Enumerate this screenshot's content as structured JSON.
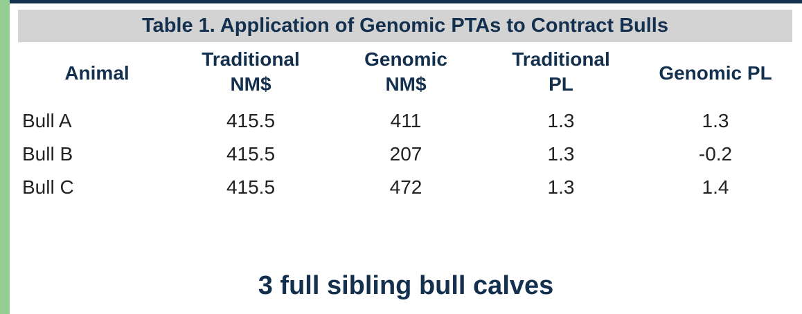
{
  "table": {
    "title": "Table 1. Application of Genomic PTAs to Contract Bulls",
    "headers": {
      "animal": "Animal",
      "traditional_nm": [
        "Traditional",
        "NM$"
      ],
      "genomic_nm": [
        "Genomic",
        "NM$"
      ],
      "traditional_pl": [
        "Traditional",
        "PL"
      ],
      "genomic_pl": "Genomic PL"
    },
    "rows": [
      {
        "animal": "Bull A",
        "traditional_nm": "415.5",
        "genomic_nm": "411",
        "traditional_pl": "1.3",
        "genomic_pl": "1.3"
      },
      {
        "animal": "Bull B",
        "traditional_nm": "415.5",
        "genomic_nm": "207",
        "traditional_pl": "1.3",
        "genomic_pl": "-0.2"
      },
      {
        "animal": "Bull C",
        "traditional_nm": "415.5",
        "genomic_nm": "472",
        "traditional_pl": "1.3",
        "genomic_pl": "1.4"
      }
    ]
  },
  "caption": "3 full sibling bull calves",
  "colors": {
    "accent_bar": "#94cd94",
    "header_text": "#14304f",
    "title_band": "#d3d3d3"
  }
}
